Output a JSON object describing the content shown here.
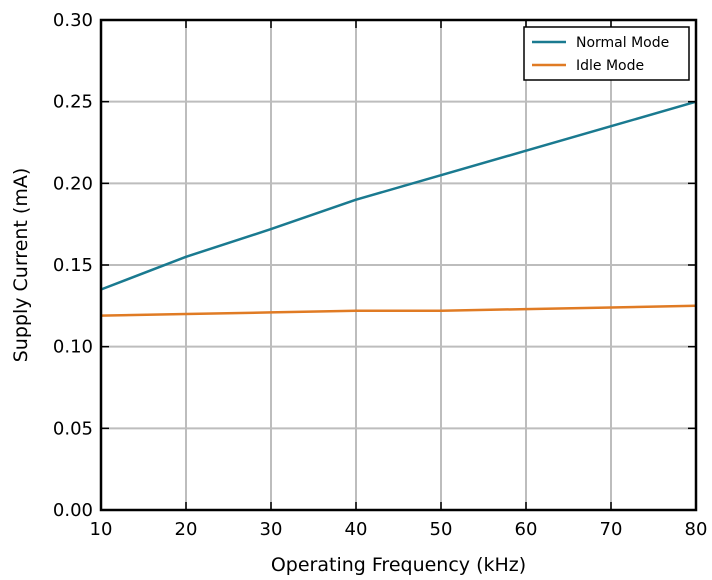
{
  "chart_data": {
    "type": "line",
    "title": "",
    "xlabel": "Operating Frequency (kHz)",
    "ylabel": "Supply Current (mA)",
    "xlim": [
      10,
      80
    ],
    "ylim": [
      0,
      0.3
    ],
    "xticks": [
      10,
      20,
      30,
      40,
      50,
      60,
      70,
      80
    ],
    "yticks": [
      0.0,
      0.05,
      0.1,
      0.15,
      0.2,
      0.25,
      0.3
    ],
    "xtick_labels": [
      "10",
      "20",
      "30",
      "40",
      "50",
      "60",
      "70",
      "80"
    ],
    "ytick_labels": [
      "0.00",
      "0.05",
      "0.10",
      "0.15",
      "0.20",
      "0.25",
      "0.30"
    ],
    "grid": true,
    "legend_position": "top-right",
    "series": [
      {
        "name": "Normal Mode",
        "color": "#1a7a90",
        "x": [
          10,
          20,
          30,
          40,
          50,
          60,
          70,
          80
        ],
        "y": [
          0.135,
          0.155,
          0.172,
          0.19,
          0.205,
          0.22,
          0.235,
          0.25
        ]
      },
      {
        "name": "Idle Mode",
        "color": "#e07b24",
        "x": [
          10,
          20,
          30,
          40,
          50,
          60,
          70,
          80
        ],
        "y": [
          0.119,
          0.12,
          0.121,
          0.122,
          0.122,
          0.123,
          0.124,
          0.125
        ]
      }
    ]
  }
}
